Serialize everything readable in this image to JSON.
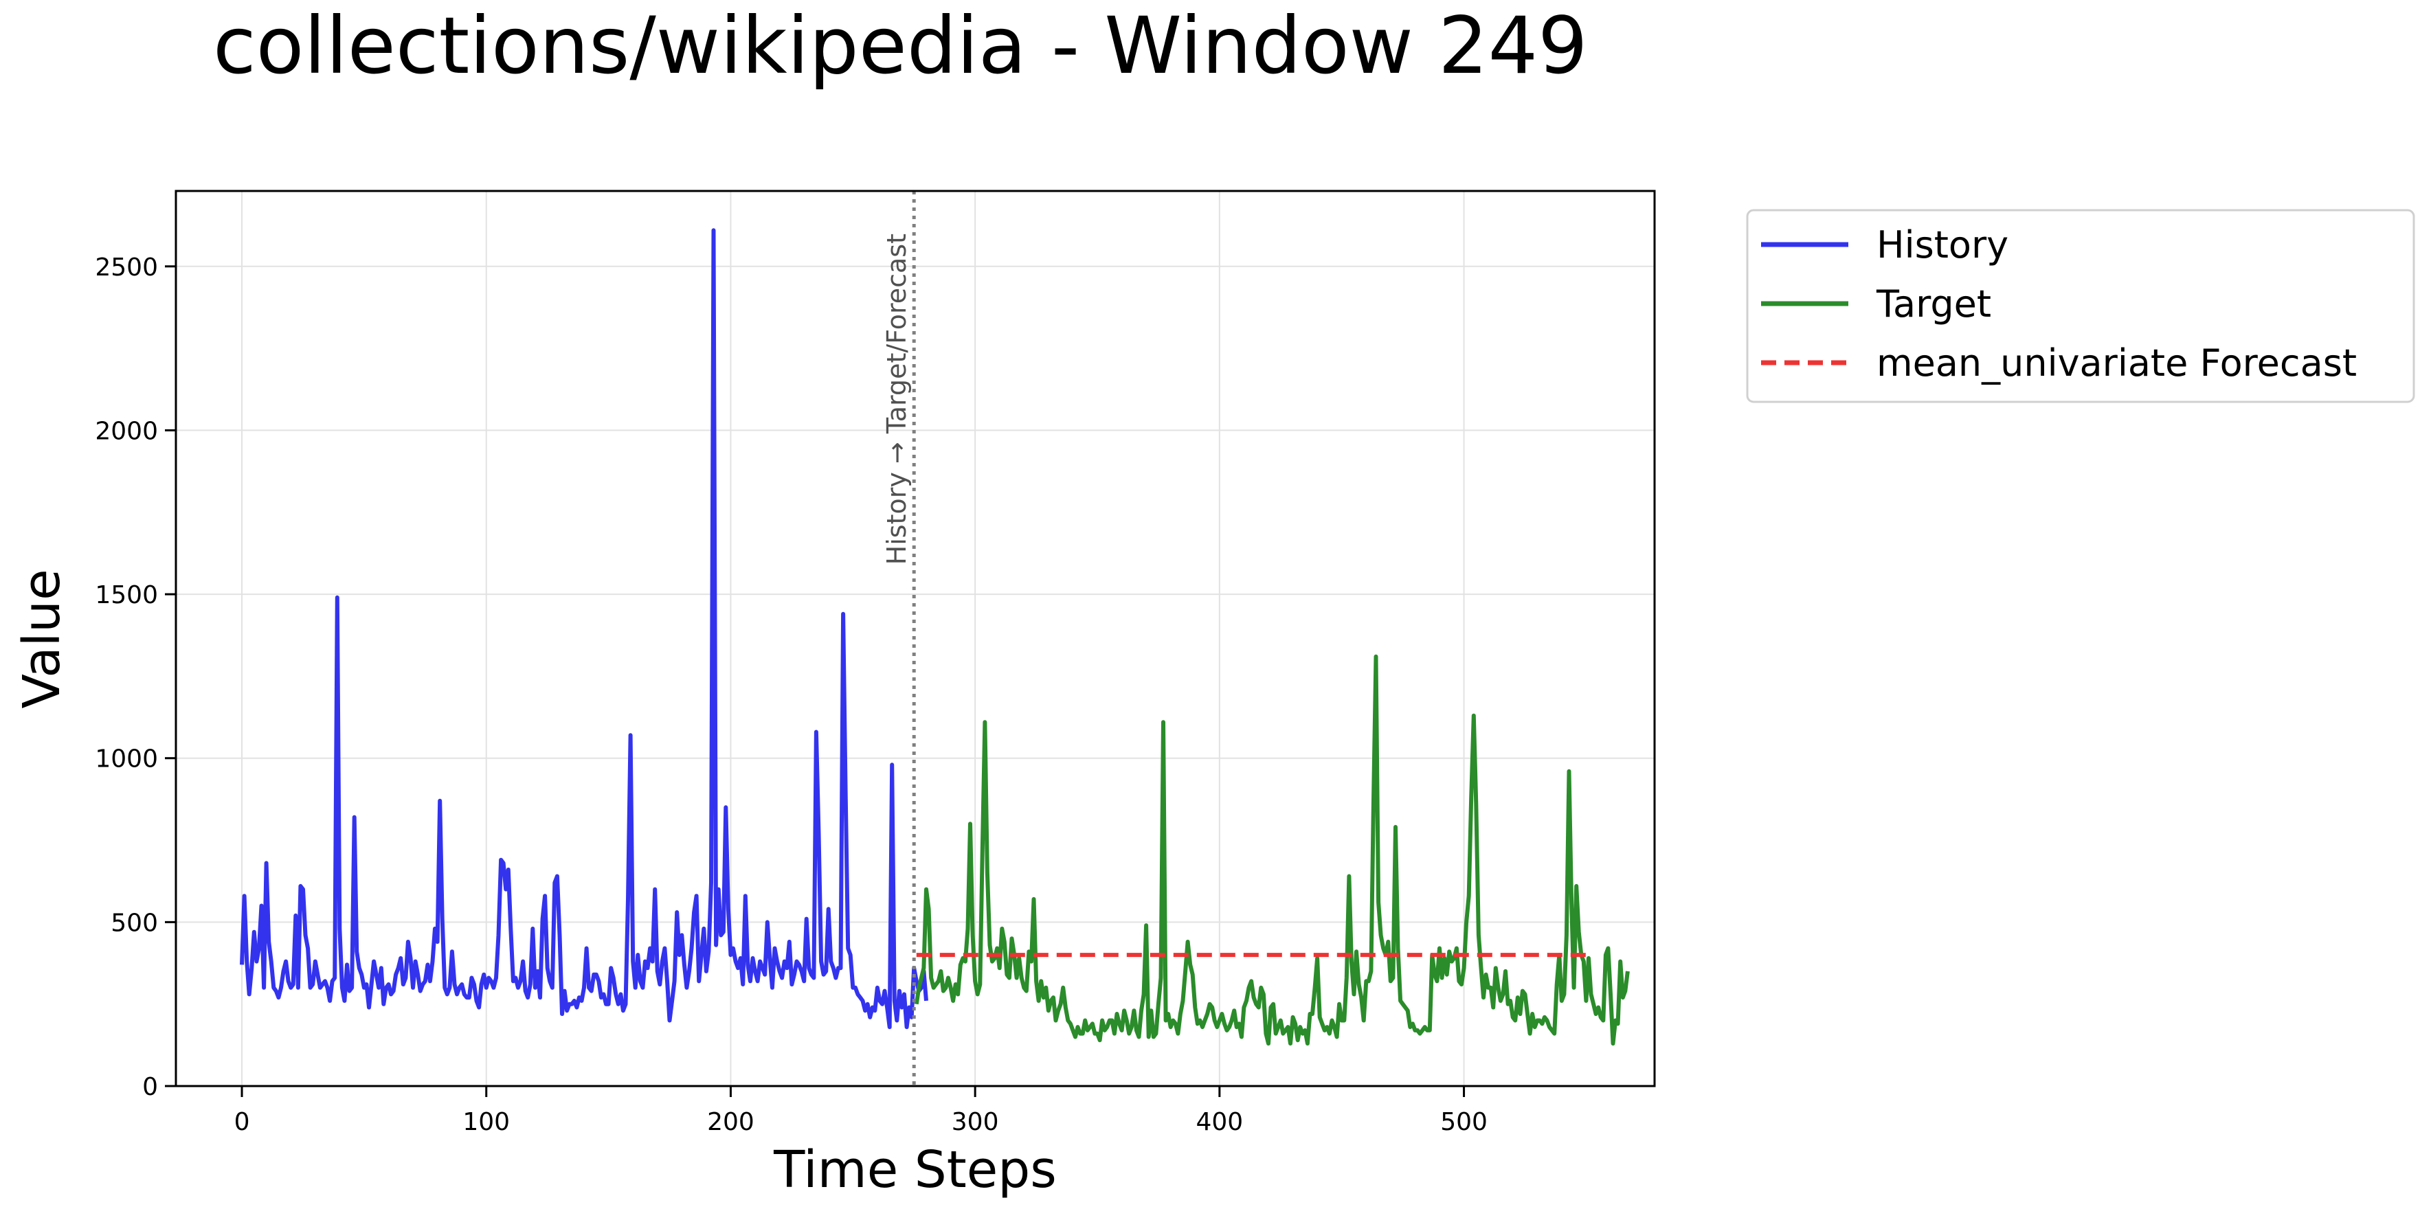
{
  "chart_data": {
    "type": "line",
    "title": "collections/wikipedia - Window 249",
    "xlabel": "Time Steps",
    "ylabel": "Value",
    "xlim": [
      -27,
      578
    ],
    "ylim": [
      0,
      2730
    ],
    "xticks": [
      0,
      100,
      200,
      300,
      400,
      500
    ],
    "yticks": [
      0,
      500,
      1000,
      1500,
      2000,
      2500
    ],
    "grid": true,
    "legend_position": "outside-top-right",
    "split": {
      "x": 275,
      "label": "History → Target/Forecast"
    },
    "series": [
      {
        "name": "History",
        "color": "#3333ee",
        "style": "solid",
        "x_start": 0,
        "values": [
          370,
          580,
          380,
          280,
          360,
          470,
          380,
          420,
          550,
          300,
          680,
          440,
          380,
          300,
          290,
          270,
          300,
          350,
          380,
          320,
          300,
          310,
          520,
          300,
          610,
          600,
          460,
          420,
          300,
          310,
          380,
          340,
          300,
          310,
          320,
          300,
          260,
          320,
          330,
          1490,
          480,
          300,
          260,
          370,
          290,
          300,
          820,
          410,
          360,
          340,
          300,
          310,
          240,
          310,
          380,
          340,
          300,
          360,
          250,
          300,
          310,
          280,
          290,
          340,
          360,
          390,
          310,
          330,
          440,
          390,
          300,
          380,
          340,
          290,
          310,
          320,
          370,
          320,
          380,
          480,
          440,
          870,
          510,
          300,
          280,
          300,
          410,
          310,
          280,
          300,
          310,
          280,
          270,
          270,
          330,
          310,
          260,
          240,
          310,
          340,
          300,
          330,
          320,
          300,
          330,
          460,
          690,
          680,
          600,
          660,
          480,
          320,
          330,
          300,
          320,
          380,
          290,
          270,
          310,
          480,
          300,
          350,
          270,
          510,
          580,
          360,
          320,
          300,
          620,
          640,
          460,
          220,
          290,
          230,
          250,
          250,
          260,
          240,
          270,
          260,
          300,
          420,
          300,
          290,
          340,
          340,
          320,
          270,
          280,
          250,
          250,
          360,
          330,
          280,
          250,
          280,
          230,
          250,
          570,
          1070,
          380,
          300,
          400,
          320,
          300,
          380,
          360,
          420,
          380,
          600,
          350,
          310,
          380,
          420,
          320,
          200,
          260,
          320,
          530,
          400,
          460,
          370,
          300,
          350,
          420,
          530,
          580,
          320,
          400,
          480,
          350,
          410,
          620,
          2610,
          430,
          600,
          460,
          470,
          850,
          540,
          400,
          420,
          380,
          360,
          390,
          310,
          580,
          370,
          320,
          390,
          350,
          320,
          380,
          360,
          340,
          500,
          390,
          300,
          420,
          380,
          350,
          330,
          380,
          360,
          440,
          310,
          340,
          380,
          370,
          350,
          320,
          510,
          360,
          340,
          330,
          1080,
          770,
          380,
          340,
          350,
          540,
          380,
          360,
          330,
          360,
          360,
          1440,
          900,
          420,
          400,
          300,
          300,
          280,
          270,
          260,
          230,
          250,
          210,
          240,
          230,
          300,
          260,
          250,
          290,
          240,
          180,
          980,
          260,
          200,
          290,
          240,
          280,
          180,
          240,
          210,
          360,
          320,
          290,
          300,
          350,
          260
        ]
      },
      {
        "name": "Target",
        "color": "#2a8c2a",
        "style": "solid",
        "x_start": 276,
        "values": [
          250,
          300,
          330,
          360,
          600,
          540,
          330,
          300,
          310,
          320,
          350,
          290,
          300,
          330,
          300,
          260,
          310,
          280,
          370,
          390,
          380,
          480,
          800,
          460,
          320,
          280,
          310,
          720,
          1110,
          650,
          430,
          380,
          390,
          420,
          360,
          480,
          440,
          340,
          330,
          450,
          400,
          330,
          390,
          330,
          300,
          290,
          410,
          380,
          570,
          320,
          260,
          320,
          270,
          300,
          230,
          260,
          270,
          200,
          230,
          250,
          300,
          240,
          200,
          190,
          170,
          150,
          180,
          160,
          160,
          200,
          170,
          180,
          190,
          160,
          160,
          140,
          200,
          170,
          180,
          200,
          200,
          160,
          220,
          190,
          170,
          230,
          200,
          160,
          180,
          230,
          170,
          150,
          230,
          280,
          490,
          150,
          230,
          150,
          160,
          250,
          330,
          1110,
          200,
          220,
          180,
          200,
          190,
          160,
          220,
          260,
          350,
          440,
          370,
          340,
          240,
          190,
          200,
          180,
          200,
          220,
          250,
          240,
          200,
          180,
          200,
          220,
          190,
          170,
          180,
          200,
          230,
          180,
          190,
          150,
          240,
          260,
          300,
          320,
          270,
          250,
          240,
          300,
          280,
          160,
          130,
          240,
          250,
          160,
          180,
          200,
          160,
          170,
          180,
          130,
          210,
          190,
          140,
          180,
          160,
          170,
          130,
          220,
          220,
          300,
          390,
          210,
          190,
          170,
          180,
          160,
          200,
          180,
          150,
          250,
          200,
          200,
          330,
          640,
          380,
          280,
          410,
          310,
          270,
          200,
          320,
          320,
          350,
          860,
          1310,
          560,
          460,
          420,
          400,
          440,
          320,
          330,
          790,
          420,
          260,
          250,
          240,
          230,
          180,
          190,
          170,
          170,
          160,
          170,
          180,
          170,
          170,
          400,
          340,
          320,
          420,
          330,
          390,
          340,
          410,
          380,
          390,
          420,
          320,
          310,
          360,
          500,
          580,
          880,
          1130,
          860,
          460,
          360,
          270,
          340,
          300,
          300,
          240,
          360,
          300,
          260,
          280,
          350,
          250,
          260,
          210,
          200,
          270,
          220,
          290,
          280,
          220,
          160,
          220,
          180,
          200,
          200,
          190,
          210,
          200,
          180,
          170,
          160,
          310,
          400,
          260,
          280,
          460,
          960,
          560,
          300,
          610,
          470,
          400,
          380,
          260,
          390,
          280,
          250,
          220,
          240,
          210,
          200,
          400,
          420,
          280,
          130,
          200,
          190,
          380,
          270,
          290,
          350
        ]
      },
      {
        "name": "mean_univariate Forecast",
        "color": "#ee3333",
        "style": "dashed",
        "x": [
          276,
          550
        ],
        "values": [
          400,
          400
        ]
      }
    ]
  }
}
